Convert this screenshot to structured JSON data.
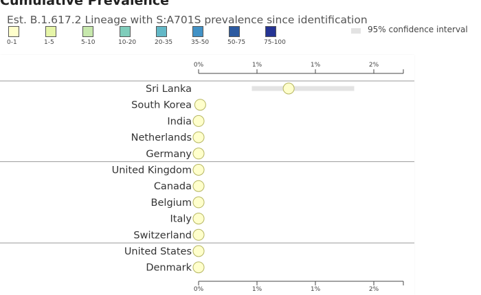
{
  "header": {
    "title": "Cumulative Prevalence"
  },
  "legend": {
    "items": [
      {
        "label": "0-1",
        "color": "#ffffcc"
      },
      {
        "label": "1-5",
        "color": "#e6f5a8"
      },
      {
        "label": "5-10",
        "color": "#c7e8ad"
      },
      {
        "label": "10-20",
        "color": "#7fcdbb"
      },
      {
        "label": "20-35",
        "color": "#63b8c7"
      },
      {
        "label": "35-50",
        "color": "#4292c6"
      },
      {
        "label": "50-75",
        "color": "#2c5aa0"
      },
      {
        "label": "75-100",
        "color": "#253494"
      }
    ],
    "ci_label": "95% confidence interval",
    "ci_color": "#e3e3e3"
  },
  "chart_data": {
    "type": "scatter",
    "title": "Est. B.1.617.2 Lineage with S:A701S prevalence since identification",
    "xlim": [
      0,
      2.5
    ],
    "xticks": [
      0,
      1,
      2,
      3
    ],
    "xtick_labels": [
      "0%",
      "1%",
      "1%",
      "2%"
    ],
    "rows": [
      {
        "label": "Sri Lanka",
        "value": 1.1,
        "ci": [
          0.65,
          1.9
        ],
        "color": "#ffffcc"
      },
      {
        "label": "South Korea",
        "value": 0.02,
        "ci": null,
        "color": "#ffffcc"
      },
      {
        "label": "India",
        "value": 0.0,
        "ci": null,
        "color": "#ffffcc"
      },
      {
        "label": "Netherlands",
        "value": 0.0,
        "ci": null,
        "color": "#ffffcc"
      },
      {
        "label": "Germany",
        "value": 0.0,
        "ci": null,
        "color": "#ffffcc"
      },
      {
        "label": "United Kingdom",
        "value": 0.0,
        "ci": null,
        "color": "#ffffcc"
      },
      {
        "label": "Canada",
        "value": 0.0,
        "ci": null,
        "color": "#ffffcc"
      },
      {
        "label": "Belgium",
        "value": 0.0,
        "ci": null,
        "color": "#ffffcc"
      },
      {
        "label": "Italy",
        "value": 0.0,
        "ci": null,
        "color": "#ffffcc"
      },
      {
        "label": "Switzerland",
        "value": 0.0,
        "ci": null,
        "color": "#ffffcc"
      },
      {
        "label": "United States",
        "value": 0.0,
        "ci": null,
        "color": "#ffffcc"
      },
      {
        "label": "Denmark",
        "value": 0.0,
        "ci": null,
        "color": "#ffffcc"
      }
    ],
    "group_separators_after": [
      0,
      4,
      9
    ]
  }
}
